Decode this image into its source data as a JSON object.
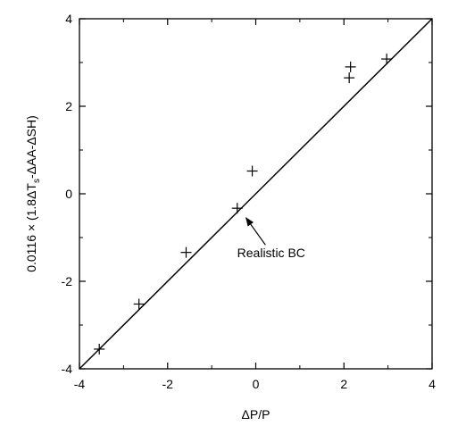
{
  "chart_data": {
    "type": "scatter",
    "title": "",
    "xlabel": "ΔP/P",
    "ylabel_parts": {
      "prefix": "0.0116 × (1.8ΔT",
      "subscript": "s",
      "suffix": "-ΔAA-ΔSH)"
    },
    "xlim": [
      -4,
      4
    ],
    "ylim": [
      -4,
      4
    ],
    "xticks": [
      -4,
      -2,
      0,
      2,
      4
    ],
    "yticks": [
      -4,
      -2,
      0,
      2,
      4
    ],
    "xtick_labels": [
      "-4",
      "-2",
      "0",
      "2",
      "4"
    ],
    "ytick_labels": [
      "-4",
      "-2",
      "0",
      "2",
      "4"
    ],
    "grid": false,
    "marker": "plus",
    "points": [
      {
        "x": -3.55,
        "y": -3.55
      },
      {
        "x": -2.65,
        "y": -2.52
      },
      {
        "x": -1.58,
        "y": -1.34
      },
      {
        "x": -0.42,
        "y": -0.33
      },
      {
        "x": -0.08,
        "y": 0.52
      },
      {
        "x": 2.12,
        "y": 2.65
      },
      {
        "x": 2.15,
        "y": 2.9
      },
      {
        "x": 2.97,
        "y": 3.08
      }
    ],
    "reference_line": {
      "x": [
        -4,
        4
      ],
      "y": [
        -4,
        4
      ]
    },
    "annotation": {
      "text": "Realistic BC",
      "text_x": 0.35,
      "text_y": -1.45,
      "arrow_from": {
        "x": 0.22,
        "y": -1.17
      },
      "arrow_to": {
        "x": -0.22,
        "y": -0.55
      }
    },
    "colors": {
      "ink": "#000000",
      "background": "#ffffff"
    }
  }
}
